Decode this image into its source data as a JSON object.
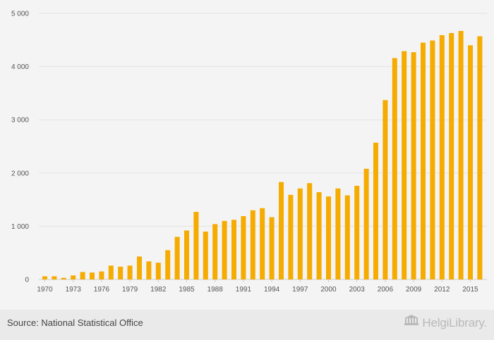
{
  "chart_data": {
    "type": "bar",
    "title": "",
    "xlabel": "",
    "ylabel": "",
    "ylim": [
      0,
      5000
    ],
    "yticks": [
      0,
      1000,
      2000,
      3000,
      4000,
      5000
    ],
    "ytick_labels": [
      "0",
      "1 000",
      "2 000",
      "3 000",
      "4 000",
      "5 000"
    ],
    "xtick_labels": [
      "1970",
      "1973",
      "1976",
      "1979",
      "1982",
      "1985",
      "1988",
      "1991",
      "1994",
      "1997",
      "2000",
      "2003",
      "2006",
      "2009",
      "2012",
      "2015"
    ],
    "grid": true,
    "bar_color": "#f5ab00",
    "categories": [
      1970,
      1971,
      1972,
      1973,
      1974,
      1975,
      1976,
      1977,
      1978,
      1979,
      1980,
      1981,
      1982,
      1983,
      1984,
      1985,
      1986,
      1987,
      1988,
      1989,
      1990,
      1991,
      1992,
      1993,
      1994,
      1995,
      1996,
      1997,
      1998,
      1999,
      2000,
      2001,
      2002,
      2003,
      2004,
      2005,
      2006,
      2007,
      2008,
      2009,
      2010,
      2011,
      2012,
      2013,
      2014,
      2015,
      2016
    ],
    "values": [
      60,
      60,
      30,
      75,
      140,
      130,
      150,
      260,
      240,
      260,
      430,
      340,
      315,
      550,
      800,
      920,
      1270,
      900,
      1040,
      1100,
      1120,
      1190,
      1300,
      1340,
      1170,
      1830,
      1590,
      1710,
      1810,
      1640,
      1560,
      1710,
      1580,
      1760,
      2080,
      2570,
      3370,
      4160,
      4290,
      4270,
      4450,
      4490,
      4590,
      4630,
      4670,
      4400,
      4570
    ]
  },
  "footer": {
    "source": "Source: National Statistical Office",
    "logo_text": "HelgiLibrary."
  },
  "icons": {
    "logo_icon": "helgi-library-logo-icon"
  }
}
